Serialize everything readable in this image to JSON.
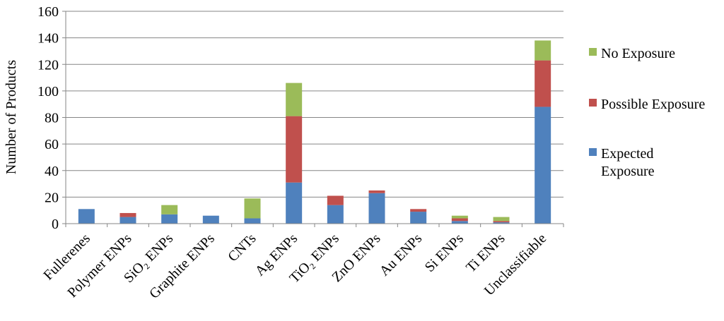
{
  "chart_data": {
    "type": "bar",
    "stacked": true,
    "title": "",
    "xlabel": "",
    "ylabel": "Number of Products",
    "ylim": [
      0,
      160
    ],
    "yticks": [
      0,
      20,
      40,
      60,
      80,
      100,
      120,
      140,
      160
    ],
    "grid": true,
    "legend_position": "right",
    "categories": [
      "Fullerenes",
      "Polymer ENPs",
      "SiO₂ ENPs",
      "Graphite ENPs",
      "CNTs",
      "Ag ENPs",
      "TiO₂ ENPs",
      "ZnO ENPs",
      "Au ENPs",
      "Si ENPs",
      "Ti ENPs",
      "Unclassifiable"
    ],
    "series": [
      {
        "name": "Expected Exposure",
        "color": "#4F81BD",
        "values": [
          11,
          5,
          7,
          6,
          4,
          31,
          14,
          23,
          9,
          2,
          1,
          88
        ]
      },
      {
        "name": "Possible Exposure",
        "color": "#C0504D",
        "values": [
          0,
          3,
          0,
          0,
          0,
          50,
          7,
          2,
          2,
          2,
          1,
          35
        ]
      },
      {
        "name": "No Exposure",
        "color": "#9BBB59",
        "values": [
          0,
          0,
          7,
          0,
          15,
          25,
          0,
          0,
          0,
          2,
          3,
          15
        ]
      }
    ],
    "legend": [
      {
        "lines": [
          "No Exposure"
        ],
        "color": "#9BBB59"
      },
      {
        "lines": [
          "Possible Exposure"
        ],
        "color": "#C0504D"
      },
      {
        "lines": [
          "Expected",
          "Exposure"
        ],
        "color": "#4F81BD"
      }
    ]
  }
}
